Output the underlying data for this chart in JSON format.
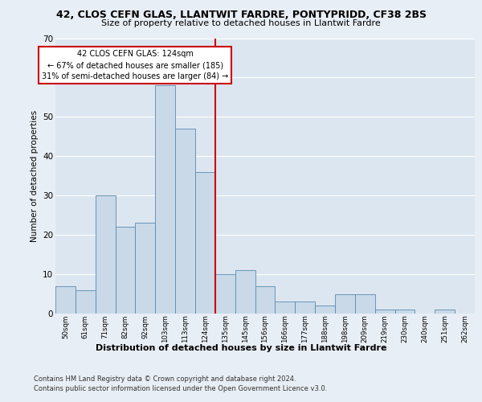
{
  "title1": "42, CLOS CEFN GLAS, LLANTWIT FARDRE, PONTYPRIDD, CF38 2BS",
  "title2": "Size of property relative to detached houses in Llantwit Fardre",
  "xlabel": "Distribution of detached houses by size in Llantwit Fardre",
  "ylabel": "Number of detached properties",
  "footer1": "Contains HM Land Registry data © Crown copyright and database right 2024.",
  "footer2": "Contains public sector information licensed under the Open Government Licence v3.0.",
  "bar_labels": [
    "50sqm",
    "61sqm",
    "71sqm",
    "82sqm",
    "92sqm",
    "103sqm",
    "113sqm",
    "124sqm",
    "135sqm",
    "145sqm",
    "156sqm",
    "166sqm",
    "177sqm",
    "188sqm",
    "198sqm",
    "209sqm",
    "219sqm",
    "230sqm",
    "240sqm",
    "251sqm",
    "262sqm"
  ],
  "bar_values": [
    7,
    6,
    30,
    22,
    23,
    58,
    47,
    36,
    10,
    11,
    7,
    3,
    3,
    2,
    5,
    5,
    1,
    1,
    0,
    1,
    0
  ],
  "bar_color": "#c9d9e8",
  "bar_edge_color": "#5a8ab0",
  "vline_index": 7.5,
  "vline_color": "#cc0000",
  "annotation_text": "42 CLOS CEFN GLAS: 124sqm\n← 67% of detached houses are smaller (185)\n31% of semi-detached houses are larger (84) →",
  "annotation_box_color": "#ffffff",
  "annotation_box_edge": "#cc0000",
  "ylim": [
    0,
    70
  ],
  "yticks": [
    0,
    10,
    20,
    30,
    40,
    50,
    60,
    70
  ],
  "bg_color": "#e8eef5",
  "plot_bg_color": "#dce6f0",
  "grid_color": "#ffffff"
}
